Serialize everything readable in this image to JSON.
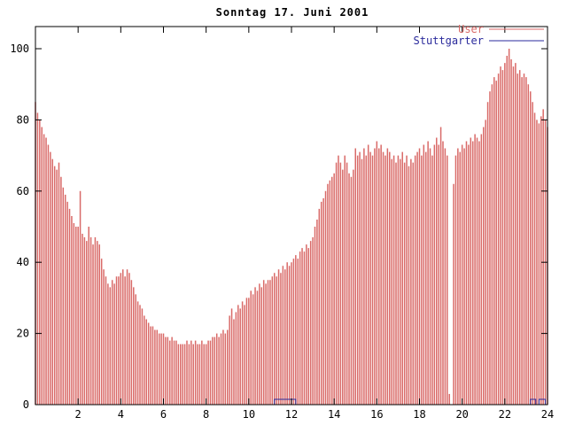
{
  "window": {
    "background": "#ffffff"
  },
  "colors": {
    "user_series": "#d96a68",
    "stuttgarter_series": "#2a2a9c",
    "axis": "#000000",
    "background": "#ffffff"
  },
  "chart_data": {
    "type": "bar",
    "title": "Sonntag 17. Juni 2001",
    "xlabel": "",
    "ylabel": "",
    "xlim": [
      0,
      24
    ],
    "ylim": [
      0,
      100
    ],
    "x_ticks": [
      2,
      4,
      6,
      8,
      10,
      12,
      14,
      16,
      18,
      20,
      22,
      24
    ],
    "y_ticks": [
      0,
      20,
      40,
      60,
      80,
      100
    ],
    "grid": false,
    "legend_position": "top-right",
    "x_step_hours": 0.1,
    "series": [
      {
        "name": "User",
        "style": "impulses",
        "color": "#d96a68",
        "values": [
          85,
          82,
          80,
          78,
          76,
          75,
          73,
          71,
          69,
          67,
          66,
          68,
          64,
          61,
          59,
          57,
          55,
          53,
          51,
          50,
          50,
          60,
          48,
          47,
          46,
          50,
          47,
          45,
          47,
          46,
          45,
          41,
          38,
          36,
          34,
          33,
          35,
          34,
          36,
          36,
          37,
          38,
          36,
          38,
          37,
          35,
          33,
          31,
          29,
          28,
          27,
          25,
          24,
          23,
          22,
          22,
          21,
          21,
          20,
          20,
          20,
          19,
          19,
          18,
          19,
          18,
          18,
          17,
          17,
          17,
          17,
          18,
          17,
          18,
          17,
          18,
          17,
          17,
          18,
          17,
          17,
          18,
          18,
          19,
          19,
          20,
          19,
          20,
          21,
          20,
          21,
          25,
          27,
          24,
          26,
          28,
          27,
          29,
          28,
          30,
          30,
          32,
          31,
          33,
          32,
          34,
          33,
          35,
          34,
          35,
          35,
          36,
          37,
          36,
          38,
          37,
          39,
          38,
          40,
          39,
          40,
          41,
          42,
          41,
          43,
          44,
          43,
          45,
          44,
          46,
          47,
          50,
          52,
          55,
          57,
          58,
          60,
          62,
          63,
          64,
          65,
          68,
          70,
          68,
          66,
          70,
          68,
          65,
          64,
          66,
          72,
          70,
          71,
          69,
          72,
          70,
          73,
          71,
          70,
          72,
          74,
          72,
          73,
          71,
          70,
          72,
          71,
          69,
          70,
          68,
          70,
          69,
          71,
          68,
          70,
          67,
          69,
          68,
          70,
          71,
          72,
          70,
          73,
          71,
          74,
          72,
          70,
          73,
          75,
          73,
          78,
          74,
          72,
          70,
          3,
          0,
          62,
          70,
          72,
          71,
          73,
          72,
          74,
          73,
          75,
          74,
          76,
          75,
          74,
          76,
          78,
          80,
          85,
          88,
          90,
          92,
          91,
          93,
          95,
          94,
          96,
          98,
          100,
          97,
          95,
          96,
          93,
          94,
          92,
          93,
          92,
          90,
          88,
          85,
          82,
          80,
          79,
          81,
          83,
          80,
          78
        ]
      },
      {
        "name": "Stuttgarter",
        "style": "line",
        "color": "#2a2a9c",
        "baseline": 0,
        "segments": [
          {
            "from": 11.2,
            "to": 12.2,
            "value": 1
          },
          {
            "from": 23.2,
            "to": 23.45,
            "value": 1
          },
          {
            "from": 23.6,
            "to": 23.9,
            "value": 1
          }
        ]
      }
    ]
  }
}
